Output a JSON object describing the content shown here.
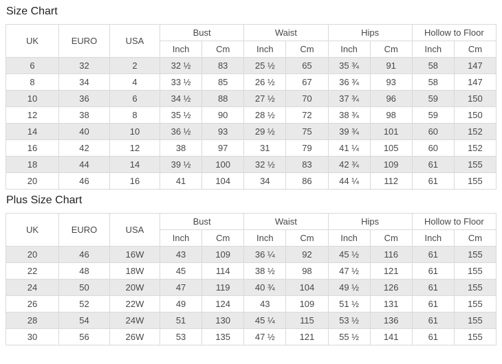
{
  "colors": {
    "border": "#d9d9d9",
    "stripe_row": "#e9e9e9",
    "plain_row": "#ffffff",
    "text": "#484848",
    "title_text": "#222222",
    "page_background": "#ffffff"
  },
  "charts": [
    {
      "id": "size_chart",
      "title": "Size Chart",
      "base_columns": [
        "UK",
        "EURO",
        "USA"
      ],
      "measure_groups": [
        "Bust",
        "Waist",
        "Hips",
        "Hollow to Floor"
      ],
      "unit_columns": [
        "Inch",
        "Cm"
      ],
      "rows": [
        [
          "6",
          "32",
          "2",
          "32 ½",
          "83",
          "25 ½",
          "65",
          "35 ¾",
          "91",
          "58",
          "147"
        ],
        [
          "8",
          "34",
          "4",
          "33 ½",
          "85",
          "26 ½",
          "67",
          "36 ¾",
          "93",
          "58",
          "147"
        ],
        [
          "10",
          "36",
          "6",
          "34 ½",
          "88",
          "27 ½",
          "70",
          "37 ¾",
          "96",
          "59",
          "150"
        ],
        [
          "12",
          "38",
          "8",
          "35 ½",
          "90",
          "28 ½",
          "72",
          "38 ¾",
          "98",
          "59",
          "150"
        ],
        [
          "14",
          "40",
          "10",
          "36 ½",
          "93",
          "29 ½",
          "75",
          "39 ¾",
          "101",
          "60",
          "152"
        ],
        [
          "16",
          "42",
          "12",
          "38",
          "97",
          "31",
          "79",
          "41 ¼",
          "105",
          "60",
          "152"
        ],
        [
          "18",
          "44",
          "14",
          "39 ½",
          "100",
          "32 ½",
          "83",
          "42 ¾",
          "109",
          "61",
          "155"
        ],
        [
          "20",
          "46",
          "16",
          "41",
          "104",
          "34",
          "86",
          "44 ¼",
          "112",
          "61",
          "155"
        ]
      ]
    },
    {
      "id": "plus_size_chart",
      "title": "Plus Size Chart",
      "base_columns": [
        "UK",
        "EURO",
        "USA"
      ],
      "measure_groups": [
        "Bust",
        "Waist",
        "Hips",
        "Hollow to Floor"
      ],
      "unit_columns": [
        "Inch",
        "Cm"
      ],
      "rows": [
        [
          "20",
          "46",
          "16W",
          "43",
          "109",
          "36 ¼",
          "92",
          "45 ½",
          "116",
          "61",
          "155"
        ],
        [
          "22",
          "48",
          "18W",
          "45",
          "114",
          "38 ½",
          "98",
          "47 ½",
          "121",
          "61",
          "155"
        ],
        [
          "24",
          "50",
          "20W",
          "47",
          "119",
          "40 ¾",
          "104",
          "49 ½",
          "126",
          "61",
          "155"
        ],
        [
          "26",
          "52",
          "22W",
          "49",
          "124",
          "43",
          "109",
          "51 ½",
          "131",
          "61",
          "155"
        ],
        [
          "28",
          "54",
          "24W",
          "51",
          "130",
          "45 ¼",
          "115",
          "53 ½",
          "136",
          "61",
          "155"
        ],
        [
          "30",
          "56",
          "26W",
          "53",
          "135",
          "47 ½",
          "121",
          "55 ½",
          "141",
          "61",
          "155"
        ]
      ]
    }
  ]
}
